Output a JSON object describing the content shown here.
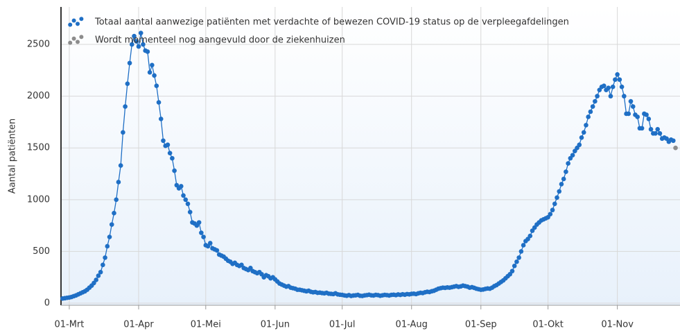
{
  "chart_data": {
    "type": "line",
    "ylabel": "Aantal patiënten",
    "xlim": [
      -3.7,
      273
    ],
    "ylim": [
      -20,
      2862
    ],
    "xticks": [
      {
        "value": 0,
        "label": "01-Mrt"
      },
      {
        "value": 31,
        "label": "01-Apr"
      },
      {
        "value": 61,
        "label": "01-Mei"
      },
      {
        "value": 92,
        "label": "01-Jun"
      },
      {
        "value": 122,
        "label": "01-Jul"
      },
      {
        "value": 153,
        "label": "01-Aug"
      },
      {
        "value": 184,
        "label": "01-Sep"
      },
      {
        "value": 214,
        "label": "01-Okt"
      },
      {
        "value": 245,
        "label": "01-Nov"
      }
    ],
    "yticks": [
      0,
      500,
      1000,
      1500,
      2000,
      2500
    ],
    "grid": true,
    "legend": "top-left",
    "series": [
      {
        "name": "Totaal aantal aanwezige patiënten met verdachte of bewezen COVID-19 status op de verpleegafdelingen",
        "color": "#1f6fc5",
        "x": [
          -3,
          -2,
          -1,
          0,
          1,
          2,
          3,
          4,
          5,
          6,
          7,
          8,
          9,
          10,
          11,
          12,
          13,
          14,
          15,
          16,
          17,
          18,
          19,
          20,
          21,
          22,
          23,
          24,
          25,
          26,
          27,
          28,
          29,
          30,
          31,
          32,
          33,
          34,
          35,
          36,
          37,
          38,
          39,
          40,
          41,
          42,
          43,
          44,
          45,
          46,
          47,
          48,
          49,
          50,
          51,
          52,
          53,
          54,
          55,
          56,
          57,
          58,
          59,
          60,
          61,
          62,
          63,
          64,
          65,
          66,
          67,
          68,
          69,
          70,
          71,
          72,
          73,
          74,
          75,
          76,
          77,
          78,
          79,
          80,
          81,
          82,
          83,
          84,
          85,
          86,
          87,
          88,
          89,
          90,
          91,
          92,
          93,
          94,
          95,
          96,
          97,
          98,
          99,
          100,
          101,
          102,
          103,
          104,
          105,
          106,
          107,
          108,
          109,
          110,
          111,
          112,
          113,
          114,
          115,
          116,
          117,
          118,
          119,
          120,
          121,
          122,
          123,
          124,
          125,
          126,
          127,
          128,
          129,
          130,
          131,
          132,
          133,
          134,
          135,
          136,
          137,
          138,
          139,
          140,
          141,
          142,
          143,
          144,
          145,
          146,
          147,
          148,
          149,
          150,
          151,
          152,
          153,
          154,
          155,
          156,
          157,
          158,
          159,
          160,
          161,
          162,
          163,
          164,
          165,
          166,
          167,
          168,
          169,
          170,
          171,
          172,
          173,
          174,
          175,
          176,
          177,
          178,
          179,
          180,
          181,
          182,
          183,
          184,
          185,
          186,
          187,
          188,
          189,
          190,
          191,
          192,
          193,
          194,
          195,
          196,
          197,
          198,
          199,
          200,
          201,
          202,
          203,
          204,
          205,
          206,
          207,
          208,
          209,
          210,
          211,
          212,
          213,
          214,
          215,
          216,
          217,
          218,
          219,
          220,
          221,
          222,
          223,
          224,
          225,
          226,
          227,
          228,
          229,
          230,
          231,
          232,
          233,
          234,
          235,
          236,
          237,
          238,
          239,
          240,
          241,
          242,
          243,
          244,
          245,
          246,
          247,
          248,
          249,
          250,
          251,
          252,
          253,
          254,
          255,
          256,
          257,
          258,
          259,
          260,
          261,
          262,
          263,
          264,
          265,
          266,
          267,
          268,
          269,
          270
        ],
        "values": [
          45,
          48,
          52,
          55,
          60,
          68,
          75,
          85,
          95,
          105,
          115,
          130,
          150,
          170,
          195,
          225,
          265,
          300,
          370,
          440,
          550,
          640,
          760,
          870,
          1000,
          1170,
          1330,
          1650,
          1900,
          2120,
          2320,
          2500,
          2580,
          2530,
          2480,
          2610,
          2500,
          2440,
          2430,
          2230,
          2300,
          2200,
          2100,
          1940,
          1780,
          1570,
          1520,
          1530,
          1450,
          1400,
          1280,
          1140,
          1110,
          1130,
          1040,
          1000,
          960,
          880,
          780,
          770,
          750,
          780,
          680,
          640,
          560,
          550,
          580,
          530,
          520,
          510,
          470,
          460,
          450,
          430,
          410,
          400,
          380,
          390,
          370,
          360,
          370,
          340,
          330,
          320,
          340,
          310,
          300,
          290,
          300,
          280,
          250,
          270,
          260,
          240,
          250,
          230,
          210,
          190,
          180,
          170,
          160,
          165,
          150,
          145,
          140,
          130,
          130,
          125,
          120,
          115,
          120,
          110,
          105,
          108,
          100,
          102,
          98,
          95,
          100,
          92,
          90,
          88,
          95,
          85,
          82,
          80,
          75,
          72,
          78,
          70,
          74,
          76,
          80,
          72,
          70,
          75,
          78,
          82,
          76,
          74,
          80,
          78,
          72,
          76,
          80,
          78,
          74,
          80,
          82,
          78,
          84,
          80,
          86,
          82,
          88,
          85,
          90,
          92,
          88,
          95,
          100,
          98,
          105,
          110,
          108,
          115,
          120,
          130,
          140,
          145,
          150,
          148,
          152,
          150,
          155,
          160,
          165,
          158,
          162,
          170,
          165,
          160,
          150,
          155,
          148,
          140,
          135,
          130,
          132,
          138,
          142,
          140,
          150,
          165,
          175,
          190,
          205,
          220,
          240,
          260,
          280,
          310,
          360,
          400,
          440,
          500,
          560,
          600,
          620,
          650,
          700,
          730,
          760,
          780,
          800,
          810,
          820,
          830,
          860,
          900,
          960,
          1020,
          1080,
          1150,
          1200,
          1270,
          1350,
          1400,
          1430,
          1470,
          1500,
          1530,
          1600,
          1650,
          1720,
          1800,
          1850,
          1900,
          1950,
          2000,
          2060,
          2090,
          2100,
          2060,
          2080,
          2000,
          2090,
          2160,
          2210,
          2160,
          2090,
          2000,
          1830,
          1830,
          1950,
          1900,
          1820,
          1800,
          1690,
          1690,
          1830,
          1820,
          1780,
          1680,
          1640,
          1640,
          1680,
          1640,
          1590,
          1600,
          1590,
          1560,
          1580,
          1570
        ]
      },
      {
        "name": "Wordt momenteel nog aangevuld door de ziekenhuizen",
        "color": "#8c8c8c",
        "x": [
          271
        ],
        "values": [
          1500
        ]
      }
    ]
  }
}
